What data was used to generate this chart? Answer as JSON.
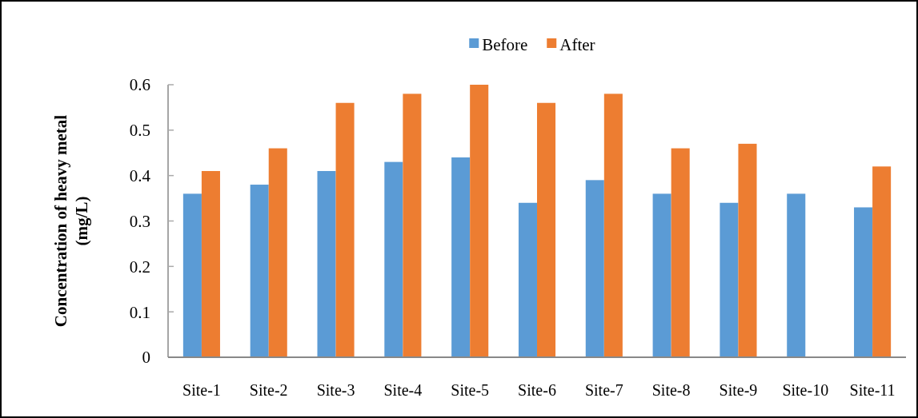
{
  "chart_data": {
    "type": "bar",
    "ylabel": "Concentration of heavy metal (mg/L)",
    "categories": [
      "Site-1",
      "Site-2",
      "Site-3",
      "Site-4",
      "Site-5",
      "Site-6",
      "Site-7",
      "Site-8",
      "Site-9",
      "Site-10",
      "Site-11"
    ],
    "series": [
      {
        "name": "Before",
        "color": "#5b9bd5",
        "values": [
          0.36,
          0.38,
          0.41,
          0.43,
          0.44,
          0.34,
          0.39,
          0.36,
          0.34,
          0.36,
          0.33
        ]
      },
      {
        "name": "After",
        "color": "#ed7d31",
        "values": [
          0.41,
          0.46,
          0.56,
          0.58,
          0.6,
          0.56,
          0.58,
          0.46,
          0.47,
          null,
          0.42
        ]
      }
    ],
    "ylim": [
      0,
      0.6
    ],
    "yticks": [
      0,
      0.1,
      0.2,
      0.3,
      0.4,
      0.5,
      0.6
    ],
    "grid": false,
    "legend": "top"
  }
}
